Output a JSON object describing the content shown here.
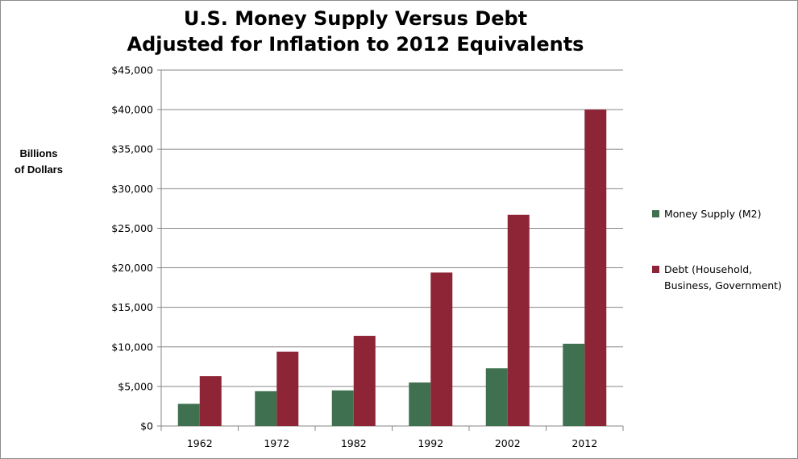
{
  "chart_data": {
    "type": "bar",
    "title_line1": "U.S. Money Supply Versus Debt",
    "title_line2": "Adjusted for Inflation to 2012 Equivalents",
    "ylabel_line1": "Billions",
    "ylabel_line2": "of Dollars",
    "xlabel": "",
    "categories": [
      "1962",
      "1972",
      "1982",
      "1992",
      "2002",
      "2012"
    ],
    "series": [
      {
        "name": "Money Supply (M2)",
        "color": "#3f7150",
        "values": [
          2800,
          4400,
          4500,
          5500,
          7300,
          10400
        ]
      },
      {
        "name_line1": "Debt (Household,",
        "name_line2": "Business, Government)",
        "color": "#8e2537",
        "values": [
          6300,
          9400,
          11400,
          19400,
          26700,
          40000
        ]
      }
    ],
    "ylim": [
      0,
      45000
    ],
    "yticks": [
      0,
      5000,
      10000,
      15000,
      20000,
      25000,
      30000,
      35000,
      40000,
      45000
    ],
    "ytick_labels": [
      "$0",
      "$5,000",
      "$10,000",
      "$15,000",
      "$20,000",
      "$25,000",
      "$30,000",
      "$35,000",
      "$40,000",
      "$45,000"
    ],
    "grid": true,
    "legend_position": "right"
  }
}
